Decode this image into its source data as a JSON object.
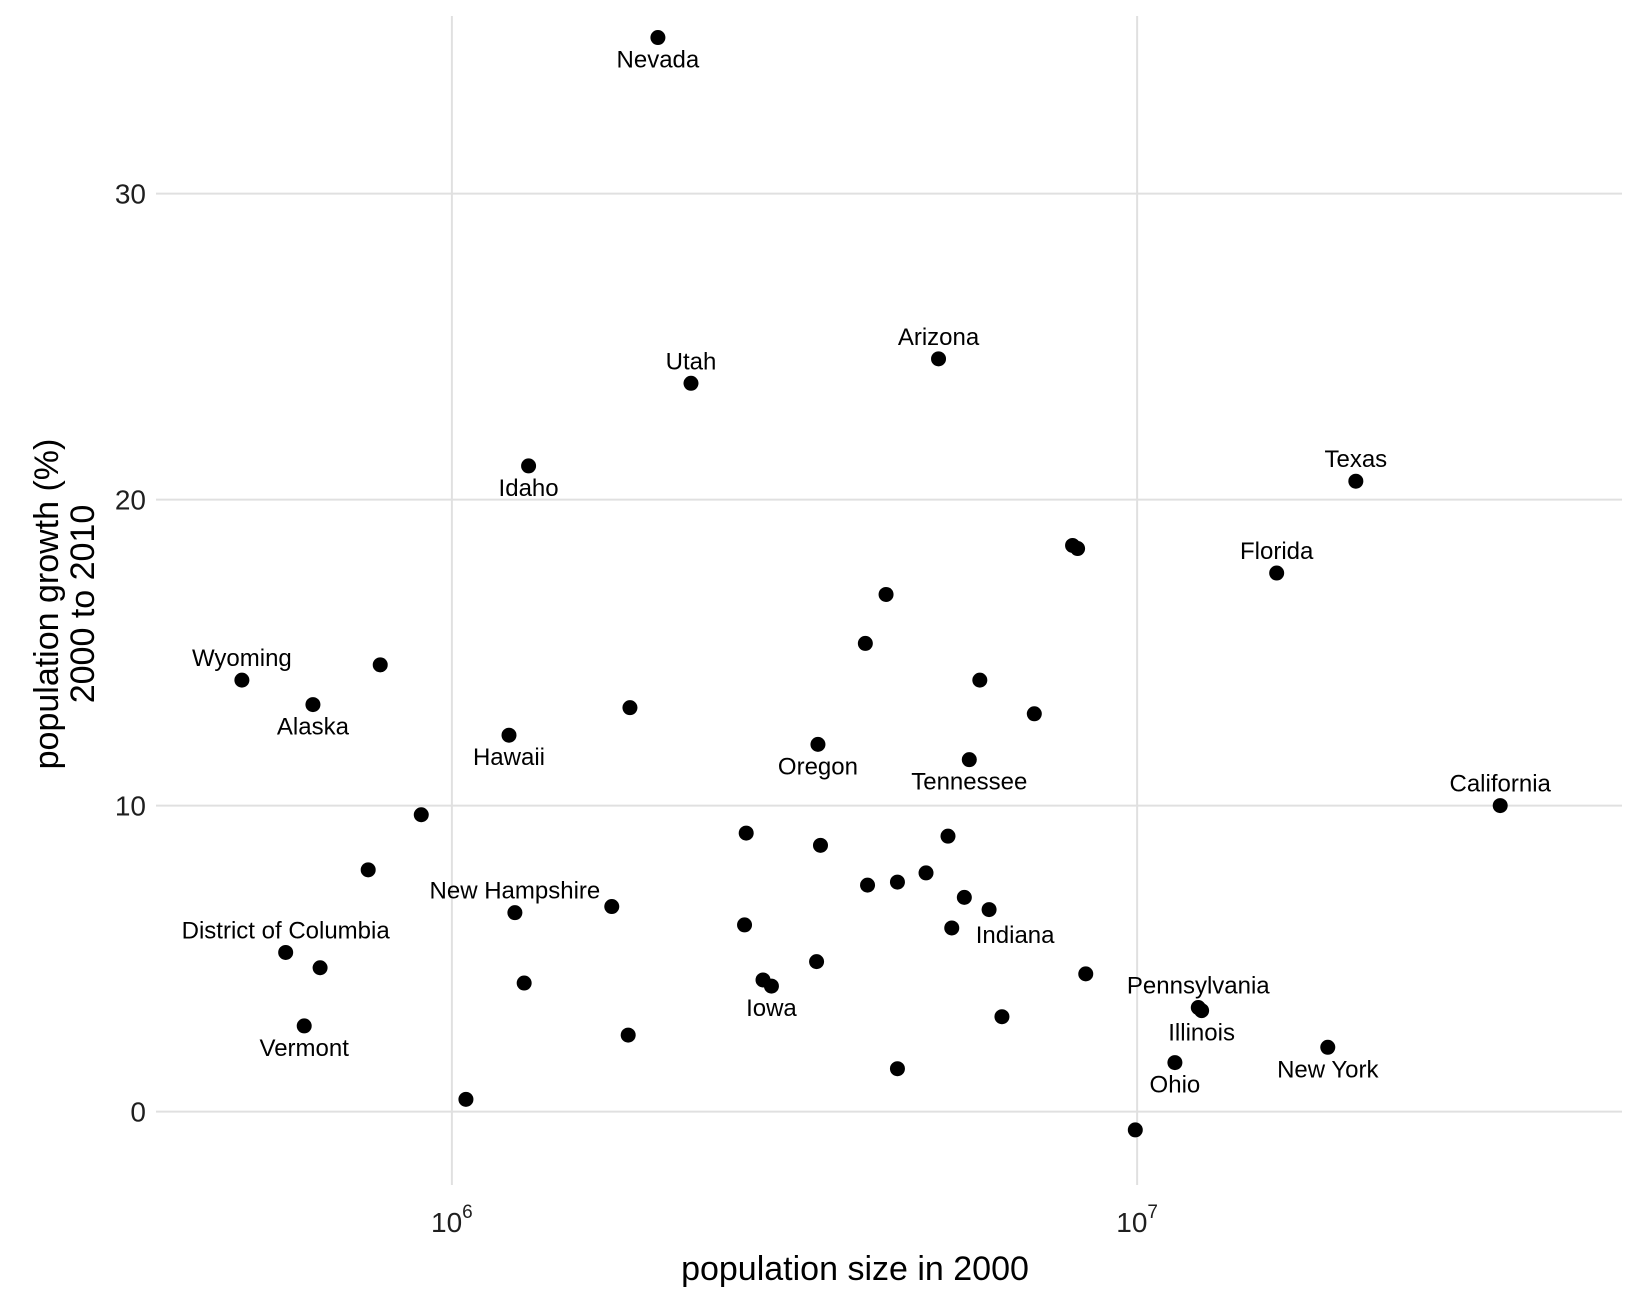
{
  "chart_data": {
    "type": "scatter",
    "title": "",
    "xlabel": "population size in 2000",
    "ylabel": [
      "population growth (%)",
      "2000 to 2010"
    ],
    "x_scale": "log10",
    "xlim": [
      370000,
      51000000
    ],
    "ylim": [
      -2.4,
      36
    ],
    "x_ticks": [
      {
        "value": 1000000,
        "base": "10",
        "exp": "6"
      },
      {
        "value": 10000000,
        "base": "10",
        "exp": "7"
      }
    ],
    "y_ticks": [
      0,
      10,
      20,
      30
    ],
    "grid": true,
    "legend": "none",
    "marker_color": "#000000",
    "gridline_color": "#e0e0e0",
    "points": [
      {
        "x": 1998257,
        "y": 35.1,
        "label": "Nevada",
        "label_pos": "below"
      },
      {
        "x": 2233169,
        "y": 23.8,
        "label": "Utah",
        "label_pos": "above"
      },
      {
        "x": 5130632,
        "y": 24.6,
        "label": "Arizona",
        "label_pos": "above"
      },
      {
        "x": 1293953,
        "y": 21.1,
        "label": "Idaho",
        "label_pos": "below"
      },
      {
        "x": 20851820,
        "y": 20.6,
        "label": "Texas",
        "label_pos": "above"
      },
      {
        "x": 15982378,
        "y": 17.6,
        "label": "Florida",
        "label_pos": "above"
      },
      {
        "x": 8186453,
        "y": 18.4,
        "label": "",
        "label_pos": "none"
      },
      {
        "x": 8049313,
        "y": 18.5,
        "label": "",
        "label_pos": "none"
      },
      {
        "x": 4301261,
        "y": 16.9,
        "label": "",
        "label_pos": "none"
      },
      {
        "x": 4012012,
        "y": 15.3,
        "label": "",
        "label_pos": "none"
      },
      {
        "x": 493782,
        "y": 14.1,
        "label": "Wyoming",
        "label_pos": "above"
      },
      {
        "x": 786000,
        "y": 14.6,
        "label": "",
        "label_pos": "none"
      },
      {
        "x": 626932,
        "y": 13.3,
        "label": "Alaska",
        "label_pos": "below"
      },
      {
        "x": 5894121,
        "y": 14.1,
        "label": "",
        "label_pos": "none"
      },
      {
        "x": 1819046,
        "y": 13.2,
        "label": "",
        "label_pos": "none"
      },
      {
        "x": 7078515,
        "y": 13.0,
        "label": "",
        "label_pos": "none"
      },
      {
        "x": 1211537,
        "y": 12.3,
        "label": "Hawaii",
        "label_pos": "below"
      },
      {
        "x": 3421399,
        "y": 12.0,
        "label": "Oregon",
        "label_pos": "below"
      },
      {
        "x": 5689283,
        "y": 11.5,
        "label": "Tennessee",
        "label_pos": "below"
      },
      {
        "x": 33871648,
        "y": 10.0,
        "label": "California",
        "label_pos": "above"
      },
      {
        "x": 902195,
        "y": 9.7,
        "label": "",
        "label_pos": "none"
      },
      {
        "x": 2688418,
        "y": 9.1,
        "label": "",
        "label_pos": "none"
      },
      {
        "x": 5296486,
        "y": 9.0,
        "label": "",
        "label_pos": "none"
      },
      {
        "x": 3450654,
        "y": 8.7,
        "label": "",
        "label_pos": "none"
      },
      {
        "x": 754844,
        "y": 7.9,
        "label": "",
        "label_pos": "none"
      },
      {
        "x": 4919479,
        "y": 7.8,
        "label": "",
        "label_pos": "none"
      },
      {
        "x": 4468976,
        "y": 7.5,
        "label": "",
        "label_pos": "none"
      },
      {
        "x": 4041769,
        "y": 7.4,
        "label": "",
        "label_pos": "none"
      },
      {
        "x": 5595211,
        "y": 7.0,
        "label": "",
        "label_pos": "none"
      },
      {
        "x": 1235786,
        "y": 6.5,
        "label": "New Hampshire",
        "label_pos": "above"
      },
      {
        "x": 1711263,
        "y": 6.7,
        "label": "",
        "label_pos": "none"
      },
      {
        "x": 6080485,
        "y": 6.6,
        "label": "",
        "label_pos": "none"
      },
      {
        "x": 2673400,
        "y": 6.1,
        "label": "",
        "label_pos": "none"
      },
      {
        "x": 5363675,
        "y": 6.0,
        "label": "Indiana",
        "label_pos": "right-below"
      },
      {
        "x": 572059,
        "y": 5.2,
        "label": "District of Columbia",
        "label_pos": "above"
      },
      {
        "x": 642200,
        "y": 4.7,
        "label": "",
        "label_pos": "none"
      },
      {
        "x": 3405565,
        "y": 4.9,
        "label": "",
        "label_pos": "none"
      },
      {
        "x": 8414350,
        "y": 4.5,
        "label": "",
        "label_pos": "none"
      },
      {
        "x": 1274923,
        "y": 4.2,
        "label": "",
        "label_pos": "none"
      },
      {
        "x": 2844658,
        "y": 4.3,
        "label": "",
        "label_pos": "none"
      },
      {
        "x": 2926324,
        "y": 4.1,
        "label": "Iowa",
        "label_pos": "below"
      },
      {
        "x": 12281054,
        "y": 3.4,
        "label": "Pennsylvania",
        "label_pos": "above"
      },
      {
        "x": 12419293,
        "y": 3.3,
        "label": "Illinois",
        "label_pos": "below"
      },
      {
        "x": 608827,
        "y": 2.8,
        "label": "Vermont",
        "label_pos": "below"
      },
      {
        "x": 6349097,
        "y": 3.1,
        "label": "",
        "label_pos": "none"
      },
      {
        "x": 18976457,
        "y": 2.1,
        "label": "New York",
        "label_pos": "below"
      },
      {
        "x": 1808344,
        "y": 2.5,
        "label": "",
        "label_pos": "none"
      },
      {
        "x": 11353140,
        "y": 1.6,
        "label": "Ohio",
        "label_pos": "below"
      },
      {
        "x": 4468976,
        "y": 1.4,
        "label": "",
        "label_pos": "none"
      },
      {
        "x": 1048319,
        "y": 0.4,
        "label": "",
        "label_pos": "none"
      },
      {
        "x": 9938444,
        "y": -0.6,
        "label": "",
        "label_pos": "none"
      }
    ]
  }
}
